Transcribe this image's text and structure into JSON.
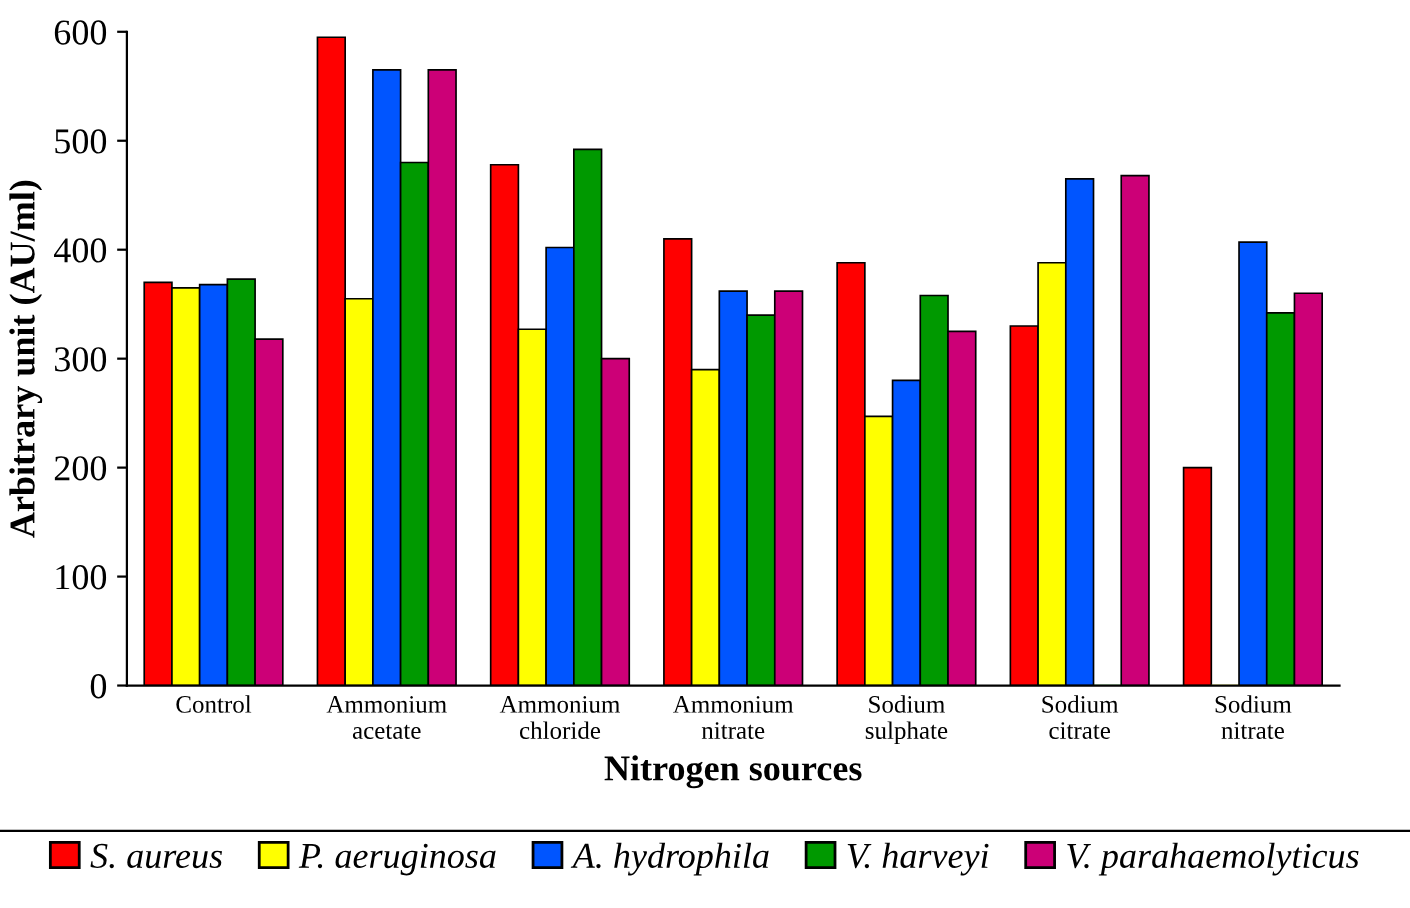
{
  "chart_data": {
    "type": "bar",
    "xlabel": "Nitrogen sources",
    "ylabel": "Arbitrary unit (AU/ml)",
    "categories": [
      "Control",
      "Ammonium\nacetate",
      "Ammonium\nchloride",
      "Ammonium\nnitrate",
      "Sodium\nsulphate",
      "Sodium\ncitrate",
      "Sodium\nnitrate"
    ],
    "series": [
      {
        "name": "S. aureus",
        "color": "#ff0000",
        "values": [
          370,
          595,
          478,
          410,
          388,
          330,
          200
        ]
      },
      {
        "name": "P. aeruginosa",
        "color": "#ffff00",
        "values": [
          365,
          355,
          327,
          290,
          247,
          388,
          0
        ]
      },
      {
        "name": "A. hydrophila",
        "color": "#0055ff",
        "values": [
          368,
          565,
          402,
          362,
          280,
          465,
          407
        ]
      },
      {
        "name": "V. harveyi",
        "color": "#009900",
        "values": [
          373,
          480,
          492,
          340,
          358,
          0,
          342
        ]
      },
      {
        "name": "V. parahaemolyticus",
        "color": "#cc0077",
        "values": [
          318,
          565,
          300,
          362,
          325,
          468,
          360
        ]
      }
    ],
    "ylim": [
      0,
      600
    ],
    "yticks": [
      0,
      100,
      200,
      300,
      400,
      500,
      600
    ],
    "grid": false,
    "legend": "bottom"
  }
}
